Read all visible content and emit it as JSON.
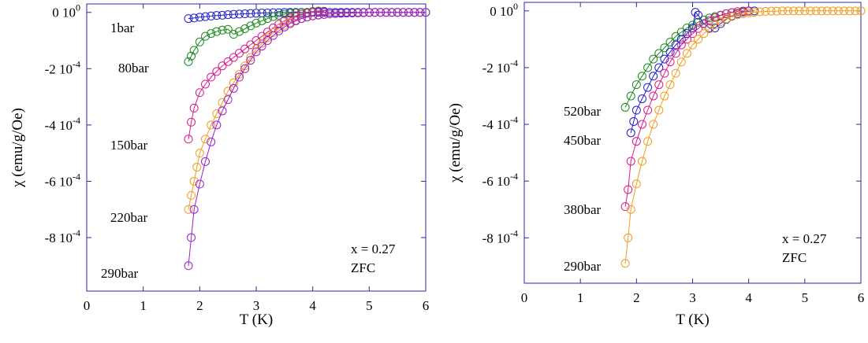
{
  "chart_data": [
    {
      "type": "scatter",
      "xlabel": "T (K)",
      "ylabel": "χ (emu/g/Oe)",
      "xlim": [
        0,
        6
      ],
      "ylim": [
        -0.00099,
        3e-05
      ],
      "xticks": [
        "0",
        "1",
        "2",
        "3",
        "4",
        "5",
        "6"
      ],
      "yticks": [
        {
          "value": 0,
          "mantissa": "0 10",
          "exp": "0"
        },
        {
          "value": -0.0002,
          "mantissa": "-2 10",
          "exp": "-4"
        },
        {
          "value": -0.0004,
          "mantissa": "-4 10",
          "exp": "-4"
        },
        {
          "value": -0.0006,
          "mantissa": "-6 10",
          "exp": "-4"
        },
        {
          "value": -0.0008,
          "mantissa": "-8 10",
          "exp": "-4"
        }
      ],
      "annotations": [
        "x = 0.27",
        "ZFC"
      ],
      "series": [
        {
          "name": "1bar",
          "color": "#1f1fcc",
          "x": [
            1.8,
            1.9,
            2.0,
            2.1,
            2.2,
            2.3,
            2.4,
            2.5,
            2.6,
            2.7,
            2.8,
            2.9,
            3.0,
            3.1,
            3.2,
            3.3,
            3.4,
            3.5,
            3.6,
            3.7,
            3.8,
            3.9,
            4.0,
            4.1,
            4.2,
            4.3,
            4.4,
            4.5,
            4.6,
            4.7,
            4.8,
            4.9,
            5.0,
            5.1,
            5.2,
            5.3,
            5.4,
            5.5,
            5.6,
            5.7,
            5.8,
            5.9,
            6.0
          ],
          "y": [
            -2.2e-05,
            -2e-05,
            -1.7e-05,
            -1.5e-05,
            -1.3e-05,
            -1.1e-05,
            -1e-05,
            -8e-06,
            -7e-06,
            -6e-06,
            -5e-06,
            -4e-06,
            -3e-06,
            -2e-06,
            -2e-06,
            -1e-06,
            -1e-06,
            0,
            0,
            0,
            0,
            0,
            0,
            0,
            0,
            0,
            0,
            0,
            0,
            0,
            0,
            0,
            0,
            0,
            0,
            0,
            0,
            0,
            0,
            0,
            0,
            0,
            0
          ]
        },
        {
          "name": "80bar",
          "color": "#1f8a1f",
          "x": [
            1.8,
            1.85,
            1.9,
            2.0,
            2.1,
            2.2,
            2.3,
            2.4,
            2.5,
            2.6,
            2.7,
            2.8,
            2.9,
            3.0,
            3.1,
            3.2,
            3.3,
            3.4,
            3.5,
            3.6,
            3.7,
            3.8,
            3.9,
            4.0,
            4.1,
            4.2
          ],
          "y": [
            -0.000175,
            -0.000155,
            -0.000135,
            -0.000105,
            -8.5e-05,
            -7.5e-05,
            -6.8e-05,
            -6.3e-05,
            -6e-05,
            -7.8e-05,
            -6.8e-05,
            -5.8e-05,
            -4.8e-05,
            -3.8e-05,
            -3e-05,
            -2.2e-05,
            -1.5e-05,
            -1e-05,
            -6e-06,
            -3e-06,
            -2e-06,
            -1e-06,
            0,
            3e-06,
            5e-06,
            4e-06
          ]
        },
        {
          "name": "150bar",
          "color": "#d81b8c",
          "x": [
            1.8,
            1.85,
            1.9,
            2.0,
            2.1,
            2.2,
            2.3,
            2.4,
            2.5,
            2.6,
            2.7,
            2.8,
            2.9,
            3.0,
            3.1,
            3.2,
            3.3,
            3.4,
            3.5,
            3.6,
            3.7,
            3.8,
            3.9,
            4.0,
            4.1,
            4.2
          ],
          "y": [
            -0.00045,
            -0.00039,
            -0.00034,
            -0.000285,
            -0.000255,
            -0.00023,
            -0.00021,
            -0.00019,
            -0.000175,
            -0.00016,
            -0.000145,
            -0.00013,
            -0.000115,
            -0.0001,
            -8.5e-05,
            -7e-05,
            -5.5e-05,
            -4.2e-05,
            -3e-05,
            -2e-05,
            -1.2e-05,
            -6e-06,
            -3e-06,
            1e-06,
            3e-06,
            3e-06
          ]
        },
        {
          "name": "220bar",
          "color": "#f39c1f",
          "x": [
            1.8,
            1.85,
            1.9,
            1.95,
            2.0,
            2.1,
            2.2,
            2.3,
            2.4,
            2.5,
            2.6,
            2.7,
            2.8,
            2.9,
            3.0,
            3.1,
            3.2,
            3.3,
            3.4,
            3.5,
            3.6,
            3.7,
            3.8,
            3.9,
            4.0,
            4.1,
            4.2,
            4.3,
            4.4,
            4.5,
            4.6,
            4.7,
            4.8,
            4.9,
            5.0,
            5.1,
            5.2,
            5.3,
            5.4,
            5.5,
            5.6,
            5.7,
            5.8,
            5.9,
            6.0
          ],
          "y": [
            -0.0007,
            -0.00065,
            -0.0006,
            -0.00055,
            -0.0005,
            -0.00045,
            -0.0004,
            -0.00036,
            -0.00032,
            -0.00028,
            -0.00025,
            -0.00022,
            -0.00019,
            -0.00016,
            -0.00013,
            -0.00011,
            -9e-05,
            -7.2e-05,
            -5.8e-05,
            -4.6e-05,
            -3.6e-05,
            -2.8e-05,
            -2.2e-05,
            -1.7e-05,
            -1.3e-05,
            -1e-05,
            -8e-06,
            -6e-06,
            -5e-06,
            -4e-06,
            -3e-06,
            -2e-06,
            -2e-06,
            -1e-06,
            -1e-06,
            0,
            0,
            0,
            0,
            0,
            0,
            0,
            0,
            0,
            0
          ]
        },
        {
          "name": "290bar",
          "color": "#9b1fcc",
          "x": [
            1.8,
            1.85,
            1.9,
            2.0,
            2.1,
            2.2,
            2.3,
            2.4,
            2.5,
            2.6,
            2.7,
            2.8,
            2.9,
            3.0,
            3.1,
            3.2,
            3.3,
            3.4,
            3.5,
            3.6,
            3.7,
            3.8,
            3.9,
            4.0,
            4.1,
            4.2,
            4.3,
            4.4,
            4.5,
            4.6,
            4.7,
            4.8,
            4.9,
            5.0,
            5.1,
            5.2,
            5.3,
            5.4,
            5.5,
            5.6,
            5.7,
            5.8,
            5.9,
            6.0
          ],
          "y": [
            -0.0009,
            -0.0008,
            -0.0007,
            -0.00061,
            -0.00053,
            -0.00046,
            -0.0004,
            -0.00035,
            -0.00031,
            -0.00027,
            -0.00023,
            -0.0002,
            -0.00017,
            -0.00014,
            -0.00012,
            -0.0001,
            -8.2e-05,
            -6.6e-05,
            -5.2e-05,
            -4e-05,
            -3e-05,
            -2.2e-05,
            -1.6e-05,
            -1.2e-05,
            -9e-06,
            -7e-06,
            -5e-06,
            -4e-06,
            -3e-06,
            -2e-06,
            -2e-06,
            -1e-06,
            -1e-06,
            0,
            0,
            0,
            0,
            0,
            0,
            0,
            0,
            0,
            0,
            0
          ]
        }
      ]
    },
    {
      "type": "scatter",
      "xlabel": "T (K)",
      "ylabel": "χ (emu/g/Oe)",
      "xlim": [
        0,
        6
      ],
      "ylim": [
        -0.00096,
        3e-05
      ],
      "xticks": [
        "0",
        "1",
        "2",
        "3",
        "4",
        "5",
        "6"
      ],
      "yticks": [
        {
          "value": 0,
          "mantissa": "0 10",
          "exp": "0"
        },
        {
          "value": -0.0002,
          "mantissa": "-2 10",
          "exp": "-4"
        },
        {
          "value": -0.0004,
          "mantissa": "-4 10",
          "exp": "-4"
        },
        {
          "value": -0.0006,
          "mantissa": "-6 10",
          "exp": "-4"
        },
        {
          "value": -0.0008,
          "mantissa": "-8 10",
          "exp": "-4"
        }
      ],
      "annotations": [
        "x = 0.27",
        "ZFC"
      ],
      "series": [
        {
          "name": "520bar",
          "color": "#1f8a1f",
          "x": [
            1.8,
            1.9,
            2.0,
            2.1,
            2.2,
            2.3,
            2.4,
            2.5,
            2.6,
            2.7,
            2.8,
            2.9,
            3.0,
            3.1,
            3.2,
            3.3,
            3.4,
            3.5,
            3.6,
            3.7,
            3.8,
            3.9,
            4.0
          ],
          "y": [
            -0.00034,
            -0.0003,
            -0.00026,
            -0.00023,
            -0.0002,
            -0.00017,
            -0.00015,
            -0.00013,
            -0.00011,
            -9e-05,
            -7.5e-05,
            -6e-05,
            -5e-05,
            -4e-05,
            -3.2e-05,
            -2.5e-05,
            -2e-05,
            -1.5e-05,
            -1e-05,
            -6e-06,
            -3e-06,
            -1e-06,
            0
          ]
        },
        {
          "name": "450bar",
          "color": "#1f1fcc",
          "x": [
            1.9,
            1.95,
            2.0,
            2.1,
            2.2,
            2.3,
            2.4,
            2.5,
            2.6,
            2.7,
            2.8,
            2.9,
            3.0,
            3.05,
            3.1,
            3.2,
            3.3,
            3.4,
            3.5,
            3.6,
            3.7,
            3.8,
            3.9,
            4.0,
            4.1
          ],
          "y": [
            -0.00043,
            -0.00039,
            -0.00035,
            -0.00031,
            -0.00027,
            -0.00023,
            -0.0002,
            -0.00017,
            -0.000145,
            -0.00012,
            -0.0001,
            -8e-05,
            -6e-05,
            -5e-06,
            -1.5e-05,
            -4.5e-05,
            -6e-05,
            -6e-05,
            -4.5e-05,
            -3e-05,
            -1.8e-05,
            -1e-05,
            -4e-06,
            -1e-06,
            0
          ]
        },
        {
          "name": "380bar",
          "color": "#d81b8c",
          "x": [
            1.8,
            1.85,
            1.9,
            2.0,
            2.1,
            2.2,
            2.3,
            2.4,
            2.5,
            2.6,
            2.7,
            2.8,
            2.9,
            3.0,
            3.1,
            3.2,
            3.3,
            3.4,
            3.5,
            3.6,
            3.7,
            3.8,
            3.9,
            4.0
          ],
          "y": [
            -0.00069,
            -0.00063,
            -0.00053,
            -0.00046,
            -0.0004,
            -0.00035,
            -0.0003,
            -0.00026,
            -0.00022,
            -0.00018,
            -0.00015,
            -0.00012,
            -0.0001,
            -8e-05,
            -6.2e-05,
            -4.6e-05,
            -3.4e-05,
            -2.4e-05,
            -1.6e-05,
            -1e-05,
            -6e-06,
            -3e-06,
            -1e-06,
            0
          ]
        },
        {
          "name": "290bar",
          "color": "#f39c1f",
          "x": [
            1.8,
            1.85,
            1.9,
            2.0,
            2.1,
            2.2,
            2.3,
            2.4,
            2.5,
            2.6,
            2.7,
            2.8,
            2.9,
            3.0,
            3.1,
            3.2,
            3.3,
            3.4,
            3.5,
            3.6,
            3.7,
            3.8,
            3.9,
            4.0,
            4.1,
            4.2,
            4.3,
            4.4,
            4.5,
            4.6,
            4.7,
            4.8,
            4.9,
            5.0,
            5.1,
            5.2,
            5.3,
            5.4,
            5.5,
            5.6,
            5.7,
            5.8,
            5.9,
            6.0
          ],
          "y": [
            -0.00089,
            -0.0008,
            -0.0007,
            -0.00061,
            -0.00053,
            -0.00046,
            -0.0004,
            -0.00035,
            -0.0003,
            -0.00026,
            -0.00022,
            -0.00018,
            -0.00015,
            -0.00012,
            -0.0001,
            -8e-05,
            -6.4e-05,
            -5e-05,
            -3.8e-05,
            -2.8e-05,
            -2e-05,
            -1.4e-05,
            -1e-05,
            -7e-06,
            -5e-06,
            -3e-06,
            -2e-06,
            -1e-06,
            -1e-06,
            0,
            0,
            0,
            0,
            0,
            0,
            0,
            0,
            0,
            0,
            0,
            0,
            0,
            0,
            0
          ]
        }
      ]
    }
  ]
}
